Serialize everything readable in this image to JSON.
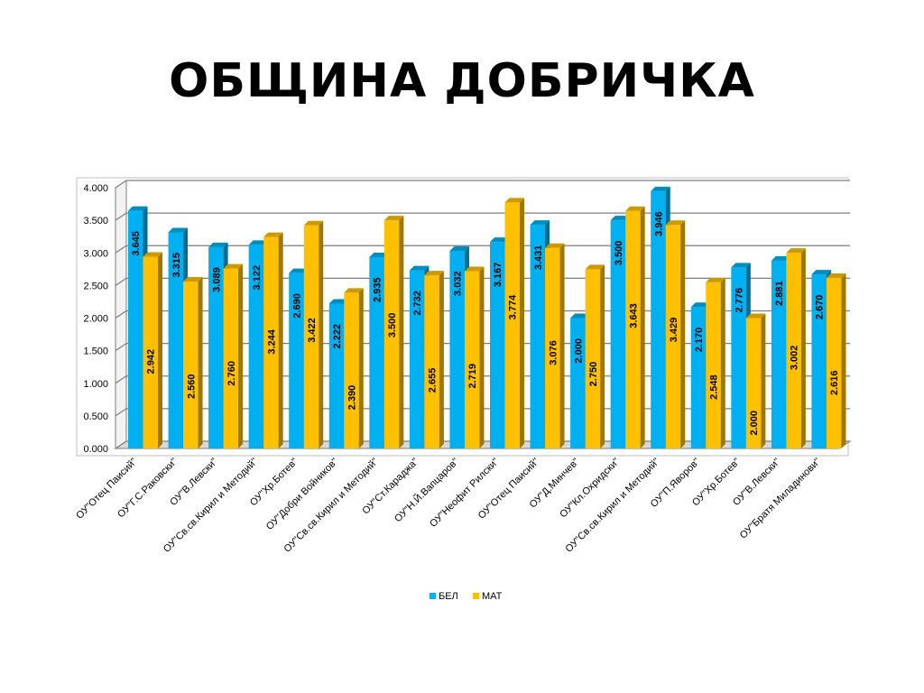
{
  "slide": {
    "title": "ОБЩИНА ДОБРИЧКА"
  },
  "chart_data": {
    "type": "bar",
    "title": "",
    "xlabel": "",
    "ylabel": "",
    "ylim": [
      0,
      4
    ],
    "yticks": [
      "0.000",
      "0.500",
      "1.000",
      "1.500",
      "2.000",
      "2.500",
      "3.000",
      "3.500",
      "4.000"
    ],
    "grid": true,
    "legend_position": "bottom",
    "categories": [
      "ОУ\"Отец Паисий\"",
      "ОУ\"Г.С.Раковски\"",
      "ОУ\"В.Левски\"",
      "ОУ\"Св.св.Кирил и Методий\"",
      "ОУ\"Хр.Ботев\"",
      "ОУ\"Добри Войников\"",
      "ОУ\"Св.св.Кирил и Методий\"",
      "ОУ\"Ст.Караджа\"",
      "ОУ\"Н.Й.Вапцаров\"",
      "ОУ\"Неофит Рилски\"",
      "ОУ\"Отец Паисий\"",
      "ОУ\"Д.Минчев\"",
      "ОУ\"Кл.Охридски\"",
      "ОУ\"Св.св.Кирил и Методий\"",
      "ОУ\"П.Яворов\"",
      "ОУ\"Хр.Ботев\"",
      "ОУ\"В.Левски\"",
      "ОУ\"Братя Миладинови\""
    ],
    "series": [
      {
        "name": "БЕЛ",
        "color": "#00B0F0",
        "values": [
          3.645,
          3.315,
          3.089,
          3.122,
          2.69,
          2.222,
          2.935,
          2.732,
          3.032,
          3.167,
          3.431,
          2.0,
          3.5,
          3.946,
          2.17,
          2.776,
          2.881,
          2.67
        ],
        "labels": [
          "3.645",
          "3.315",
          "3.089",
          "3.122",
          "2.690",
          "2.222",
          "2.935",
          "2.732",
          "3.032",
          "3.167",
          "3.431",
          "2.000",
          "3.500",
          "3.946",
          "2.170",
          "2.776",
          "2.881",
          "2.670"
        ]
      },
      {
        "name": "МАТ",
        "color": "#FFC000",
        "values": [
          2.942,
          2.56,
          2.76,
          3.244,
          3.422,
          2.39,
          3.5,
          2.655,
          2.719,
          3.774,
          3.076,
          2.75,
          3.643,
          3.429,
          2.548,
          2.0,
          3.002,
          2.616
        ],
        "labels": [
          "2.942",
          "2.560",
          "2.760",
          "3.244",
          "3.422",
          "2.390",
          "3.500",
          "2.655",
          "2.719",
          "3.774",
          "3.076",
          "2.750",
          "3.643",
          "3.429",
          "2.548",
          "2.000",
          "3.002",
          "2.616"
        ]
      }
    ]
  }
}
